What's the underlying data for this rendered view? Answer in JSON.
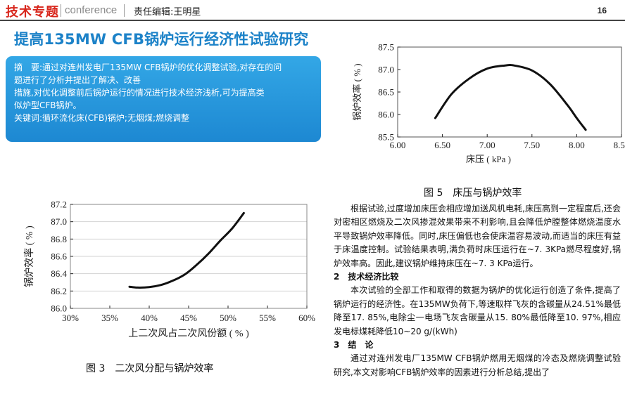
{
  "header": {
    "logo": "技术专题",
    "tagline": "conference",
    "editor": "责任编辑:王明星",
    "page_number": "16"
  },
  "article": {
    "title": "提高135MW CFB锅炉运行经济性试验研究",
    "abstract_lines": [
      "摘　要:通过对连州发电厂135MW CFB锅炉的优化调整试验,对存在的问",
      "题进行了分析并提出了解决、改善",
      "措施,对优化调整前后锅炉运行的情况进行技术经济浅析,可为提高类",
      "似炉型CFB锅炉。",
      "关键词:循环流化床(CFB)锅炉;无烟煤;燃烧调整"
    ]
  },
  "figures": {
    "fig5_caption": "图 5　床压与锅炉效率",
    "fig3_caption": "图 3　二次风分配与锅炉效率"
  },
  "body": {
    "paragraph1": "根据试验,过度增加床压会相应增加送风机电耗,床压高到一定程度后,还会对密相区燃烧及二次风掺混效果带来不利影响,且会降低炉膛整体燃烧温度水平导致锅炉效率降低。同时,床压偏低也会使床温容易波动,而适当的床压有益于床温度控制。试验结果表明,满负荷时床压运行在~7. 3KPa燃尽程度好,锅炉效率高。因此,建议锅炉维持床压在~7. 3 KPa运行。",
    "section2_heading": "2　技术经济比较",
    "paragraph2": "本次试验的全部工作和取得的数据为锅炉的优化运行创造了条件,提高了锅炉运行的经济性。在135MW负荷下,等速取样飞灰的含碳量从24.51%最低降至17. 85%,电除尘一电场飞灰含碳量从15. 80%最低降至10. 97%,相应发电标煤耗降低10~20 g/(kWh)",
    "section3_heading": "3　结　论",
    "paragraph3": "通过对连州发电厂135MW CFB锅炉燃用无烟煤的冷态及燃烧调整试验研究,本文对影响CFB锅炉效率的因素进行分析总结,提出了"
  },
  "chart_data": [
    {
      "id": "fig5",
      "type": "line",
      "title": "",
      "xlabel": "床压 ( kPa )",
      "ylabel": "锅炉效率 ( % )",
      "xlim": [
        6.0,
        8.5
      ],
      "ylim": [
        85.5,
        87.5
      ],
      "x_ticks": [
        "6.00",
        "6.50",
        "7.00",
        "7.50",
        "8.00",
        "8.50"
      ],
      "y_ticks": [
        "85.5",
        "86.0",
        "86.5",
        "87.0",
        "87.5"
      ],
      "grid": false,
      "series": [
        {
          "x": [
            6.42,
            6.6,
            6.8,
            7.0,
            7.2,
            7.3,
            7.5,
            7.7,
            7.9,
            8.0,
            8.1
          ],
          "y": [
            85.92,
            86.45,
            86.8,
            87.02,
            87.09,
            87.09,
            86.98,
            86.68,
            86.2,
            85.92,
            85.66
          ]
        }
      ],
      "color": "#111111"
    },
    {
      "id": "fig3",
      "type": "line",
      "title": "",
      "xlabel": "上二次风占二次风份额 ( % )",
      "ylabel": "锅炉效率 ( % )",
      "xlim": [
        30,
        60
      ],
      "ylim": [
        86.0,
        87.2
      ],
      "x_ticks": [
        "30%",
        "35%",
        "40%",
        "45%",
        "50%",
        "55%",
        "60%"
      ],
      "y_ticks": [
        "86.0",
        "86.2",
        "86.4",
        "86.6",
        "86.8",
        "87.0",
        "87.2"
      ],
      "grid": true,
      "series": [
        {
          "x": [
            37.5,
            38.5,
            40.0,
            41.5,
            43.0,
            44.5,
            46.0,
            47.5,
            49.0,
            50.5,
            52.0
          ],
          "y": [
            86.25,
            86.24,
            86.245,
            86.27,
            86.32,
            86.39,
            86.5,
            86.63,
            86.78,
            86.92,
            87.1
          ]
        }
      ],
      "color": "#111111"
    }
  ]
}
